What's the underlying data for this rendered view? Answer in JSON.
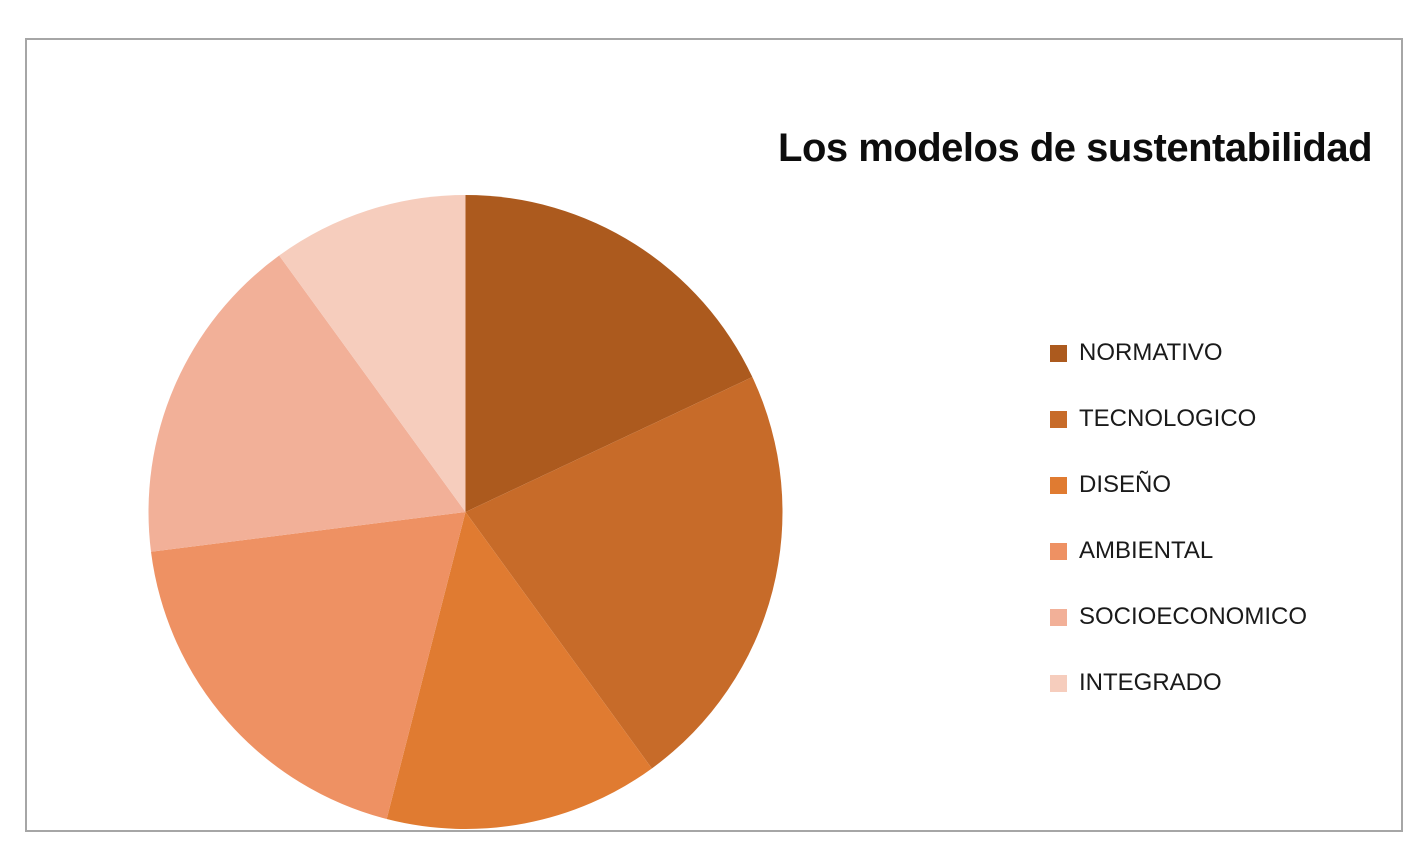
{
  "chart_data": {
    "type": "pie",
    "title": "Los modelos de sustentabilidad",
    "categories": [
      "NORMATIVO",
      "TECNOLOGICO",
      "DISEÑO",
      "AMBIENTAL",
      "SOCIOECONOMICO",
      "INTEGRADO"
    ],
    "values": [
      18,
      22,
      14,
      19,
      17,
      10
    ],
    "values_are_estimates": true,
    "colors": [
      "#AC5A1E",
      "#C76B29",
      "#E07B31",
      "#EE9163",
      "#F2B098",
      "#F6CDBD"
    ],
    "legend_position": "right",
    "start_angle_deg": 0,
    "direction": "clockwise",
    "background": "#FFFFFF",
    "frame_border_color": "#A6A6A6",
    "title_color": "#0D0D0D",
    "legend_text_color": "#1A1A1A"
  }
}
